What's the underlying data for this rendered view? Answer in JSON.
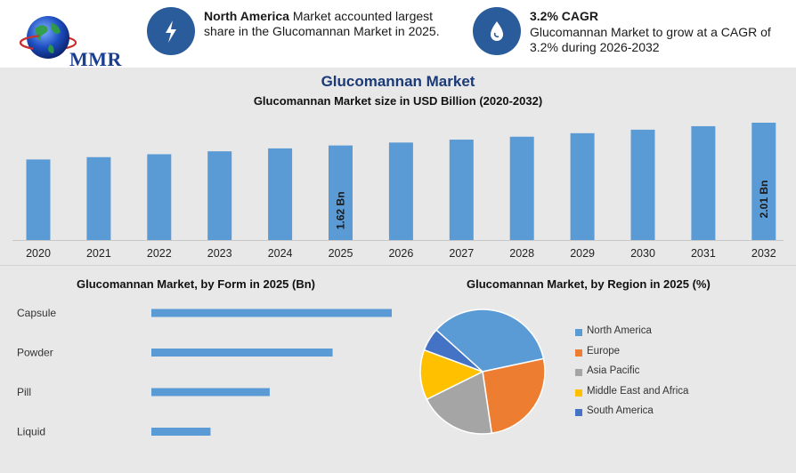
{
  "header": {
    "logo_text": "MMR",
    "info1": {
      "highlight": "North America",
      "text": " Market accounted largest share in the Glucomannan Market in 2025."
    },
    "info2": {
      "headline": "3.2% CAGR",
      "text": "Glucomannan Market to grow at a CAGR of 3.2% during 2026-2032"
    }
  },
  "title": "Glucomannan Market",
  "chart_data": [
    {
      "type": "bar",
      "title": "Glucomannan Market size in USD Billion (2020-2032)",
      "categories": [
        "2020",
        "2021",
        "2022",
        "2023",
        "2024",
        "2025",
        "2026",
        "2027",
        "2028",
        "2029",
        "2030",
        "2031",
        "2032"
      ],
      "values": [
        1.38,
        1.42,
        1.47,
        1.52,
        1.57,
        1.62,
        1.67,
        1.72,
        1.77,
        1.83,
        1.89,
        1.95,
        2.01
      ],
      "data_labels": {
        "2025": "1.62 Bn",
        "2032": "2.01 Bn"
      },
      "color": "#5b9bd5"
    },
    {
      "type": "bar",
      "orientation": "horizontal",
      "title": "Glucomannan Market, by Form in 2025 (Bn)",
      "categories": [
        "Capsule",
        "Powder",
        "Pill",
        "Liquid"
      ],
      "values": [
        0.65,
        0.49,
        0.32,
        0.16
      ],
      "color": "#5b9bd5"
    },
    {
      "type": "pie",
      "title": "Glucomannan Market, by Region in 2025 (%)",
      "labels": [
        "North America",
        "Europe",
        "Asia Pacific",
        "Middle East and Africa",
        "South America"
      ],
      "values": [
        35,
        26,
        20,
        13,
        6
      ],
      "colors": [
        "#5b9bd5",
        "#ed7d31",
        "#a5a5a5",
        "#ffc000",
        "#4472c4"
      ],
      "legend_position": "right"
    }
  ]
}
